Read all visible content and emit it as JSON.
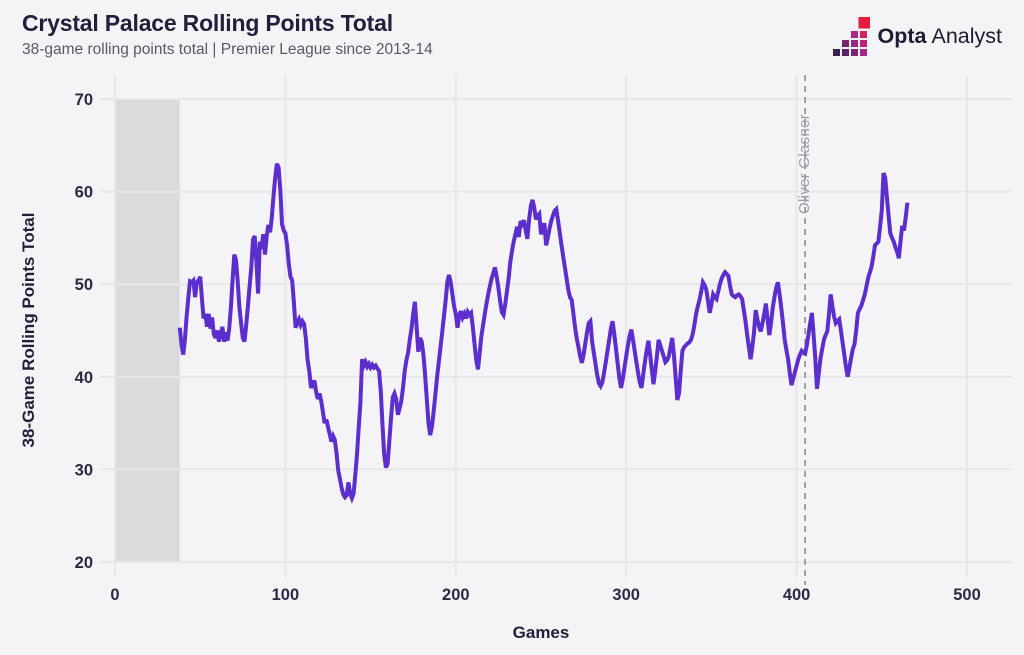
{
  "header": {
    "title": "Crystal Palace Rolling Points Total",
    "subtitle": "38-game rolling points total | Premier League since 2013-14"
  },
  "logo": {
    "brand_bold": "Opta",
    "brand_regular": "Analyst",
    "icon": "opta-pixel-stairs-icon",
    "icon_colors": [
      "#3a2150",
      "#5c2466",
      "#7e2578",
      "#a1268a",
      "#752572",
      "#982683",
      "#bb2379",
      "#b02486",
      "#d22060",
      "#e71b3c"
    ]
  },
  "chart_data": {
    "type": "line",
    "title": "Crystal Palace Rolling Points Total",
    "subtitle": "38-game rolling points total | Premier League since 2013-14",
    "xlabel": "Games",
    "ylabel": "38-Game Rolling Points Total",
    "xlim": [
      0,
      527
    ],
    "ylim": [
      20,
      70
    ],
    "xticks": [
      0,
      100,
      200,
      300,
      400,
      500
    ],
    "yticks": [
      20,
      30,
      40,
      50,
      60,
      70
    ],
    "grid": true,
    "legend": "none",
    "shaded_region": {
      "x0": 0,
      "x1": 38
    },
    "annotation": {
      "label": "Oliver Glasner",
      "x": 405
    },
    "series": [
      {
        "name": "38-game rolling points total",
        "color": "#5c2ecd",
        "x_start": 38,
        "x_step": 1,
        "values": [
          45.3,
          43.5,
          42.4,
          44,
          46.5,
          48.5,
          50.3,
          50.2,
          50.4,
          48.6,
          50.2,
          50.4,
          50.8,
          48.5,
          46.3,
          46.8,
          45.4,
          46.8,
          45.2,
          46.4,
          44.6,
          44.2,
          45,
          43.8,
          44.6,
          45.4,
          43.8,
          44.8,
          43.9,
          45.2,
          47.5,
          50.5,
          53.2,
          52.6,
          50.3,
          47.5,
          45.8,
          44.2,
          43.8,
          45.6,
          47.6,
          49.8,
          51.8,
          54.8,
          55.2,
          52.4,
          49,
          54.6,
          53.8,
          55.4,
          53.2,
          55.2,
          56.4,
          55.6,
          57.2,
          59.5,
          61.5,
          63,
          62.6,
          60.2,
          56.5,
          55.8,
          55.5,
          54.2,
          52.2,
          50.8,
          50.4,
          48,
          45.3,
          45.8,
          46.2,
          45.6,
          46,
          45.7,
          44.2,
          41.8,
          40.6,
          38.8,
          39.2,
          39.6,
          38.4,
          37.6,
          38.2,
          37.4,
          36.2,
          35,
          35.4,
          34.6,
          33.8,
          33,
          33.6,
          33.2,
          31.8,
          29.9,
          29,
          28,
          27.3,
          27,
          27.2,
          28.6,
          27.4,
          26.9,
          27.4,
          29.4,
          31.6,
          34.5,
          37.2,
          41.9,
          41.2,
          41.6,
          41.1,
          41.4,
          41,
          41.3,
          41,
          41.2,
          40.9,
          40.6,
          38.4,
          34.8,
          31.6,
          30.2,
          30.6,
          33,
          35.5,
          37.8,
          38.2,
          37.6,
          35.9,
          36.6,
          37.4,
          38.8,
          40.6,
          41.8,
          42.6,
          44,
          45.2,
          46.8,
          48.1,
          45.4,
          42.7,
          44.2,
          43.8,
          42.4,
          40.2,
          37.6,
          35,
          33.7,
          34.6,
          36.2,
          38.1,
          40,
          41.6,
          43.2,
          44.8,
          46.5,
          48.2,
          50.2,
          51,
          50.2,
          48.9,
          47.6,
          46.8,
          45.3,
          46.6,
          47.1,
          46.4,
          46.8,
          46.3,
          47,
          46.7,
          46.9,
          45.4,
          43.6,
          41.8,
          40.8,
          42.6,
          44.4,
          45.6,
          46.8,
          47.9,
          48.9,
          49.8,
          50.6,
          51.2,
          51.8,
          50.8,
          49.6,
          48.2,
          47,
          46.7,
          47.8,
          49.2,
          50.6,
          52.4,
          53.6,
          54.6,
          55.4,
          56.2,
          55.1,
          56.8,
          56.5,
          56.9,
          55.8,
          54.9,
          57,
          58.4,
          59.1,
          58.3,
          57,
          57.4,
          57.6,
          55.4,
          55.9,
          56.6,
          54.2,
          55,
          56,
          56.8,
          57.4,
          57.9,
          58.1,
          56.9,
          55.6,
          54.3,
          53,
          51.8,
          50.6,
          49.4,
          48.6,
          48.3,
          46.8,
          45.3,
          44.1,
          43.2,
          42.2,
          41.5,
          42.4,
          43.6,
          44.8,
          45.8,
          46,
          43.8,
          42.6,
          41.4,
          40.2,
          39.3,
          39,
          39.4,
          40.4,
          41.6,
          42.8,
          44,
          45.2,
          46,
          44.6,
          43,
          41.4,
          39.8,
          38.8,
          39.8,
          41,
          42.2,
          43.4,
          44.4,
          45.1,
          44,
          42.8,
          41.6,
          40.4,
          39.4,
          38.8,
          40.2,
          41.6,
          42.8,
          43.9,
          42.4,
          40.8,
          39.2,
          40.6,
          42.2,
          44,
          43.4,
          42.8,
          42.2,
          41.6,
          41.8,
          42.2,
          43.2,
          44.2,
          42.4,
          40,
          37.5,
          38.2,
          40.6,
          42.8,
          43.2,
          43.4,
          43.6,
          43.7,
          44,
          44.6,
          45.6,
          46.8,
          47.6,
          48.3,
          49.2,
          50.2,
          49.9,
          49.4,
          48.2,
          46.9,
          47.8,
          48.9,
          48.6,
          48.4,
          49.2,
          50,
          50.6,
          51,
          51.3,
          51.1,
          50.9,
          49.8,
          48.9,
          48.7,
          48.6,
          48.8,
          48.9,
          48.7,
          48.4,
          47.2,
          46,
          44.5,
          43.2,
          41.9,
          43.2,
          44.8,
          47.2,
          46.2,
          45.4,
          44.9,
          45.8,
          46.8,
          47.9,
          46.2,
          44.5,
          45.8,
          47.4,
          48.6,
          49.6,
          50.2,
          48.9,
          47.4,
          45.8,
          44,
          42.9,
          41.9,
          40.4,
          39.1,
          39.8,
          40.5,
          41.2,
          41.9,
          42.4,
          42.8,
          42.6,
          42.5,
          43.4,
          44.6,
          45.8,
          46.9,
          44.5,
          42,
          38.7,
          40.4,
          42,
          43,
          44,
          44.5,
          44.9,
          46.8,
          48.9,
          47.6,
          46.5,
          45.8,
          46,
          46.2,
          45,
          43.7,
          42.4,
          41,
          40,
          41,
          42,
          43,
          43.5,
          45,
          46.9,
          47.3,
          47.7,
          48.3,
          48.9,
          49.8,
          50.7,
          51.3,
          51.9,
          53,
          54.2,
          54.4,
          54.6,
          56.2,
          58,
          62,
          61.5,
          59.4,
          57.4,
          55.5,
          55,
          54.6,
          54,
          53.5,
          52.8,
          54.6,
          56.3,
          55.8,
          57.2,
          58.8
        ]
      }
    ]
  },
  "colors": {
    "background": "#f4f3f5",
    "gridline": "#e8e6ea",
    "shaded_band": "#dbdadd",
    "line": "#5c2ecd",
    "dashed_line": "#95919b",
    "dark_text": "#241d3b",
    "tick_text": "#2e2845",
    "subtitle_text": "#5d5765",
    "annotation_text": "#a19da8"
  }
}
